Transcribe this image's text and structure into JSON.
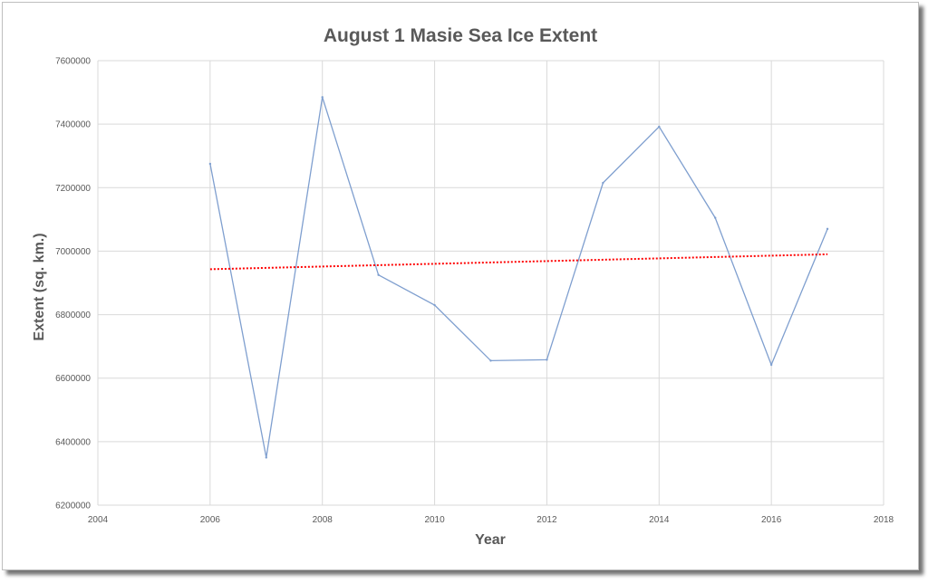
{
  "chart_data": {
    "type": "line",
    "title": "August 1 Masie Sea Ice Extent",
    "xlabel": "Year",
    "ylabel": "Extent (sq. km.)",
    "xlim": [
      2004,
      2018
    ],
    "ylim": [
      6200000,
      7600000
    ],
    "x_ticks": [
      "2004",
      "2006",
      "2008",
      "2010",
      "2012",
      "2014",
      "2016",
      "2018"
    ],
    "y_ticks": [
      "6200000",
      "6400000",
      "6600000",
      "6800000",
      "7000000",
      "7200000",
      "7400000",
      "7600000"
    ],
    "grid": true,
    "series": [
      {
        "x": [
          2006,
          2007,
          2008,
          2009,
          2010,
          2011,
          2012,
          2013,
          2014,
          2015,
          2016,
          2017
        ],
        "values": [
          7275000,
          6350000,
          7485000,
          6925000,
          6830000,
          6655000,
          6658000,
          7215000,
          7392000,
          7105000,
          6642000,
          7070000
        ],
        "color": "#7f9fcf",
        "style": "solid"
      },
      {
        "x": [
          2006,
          2017
        ],
        "values": [
          6943000,
          6990000
        ],
        "color": "#ff0000",
        "style": "dotted"
      }
    ]
  }
}
